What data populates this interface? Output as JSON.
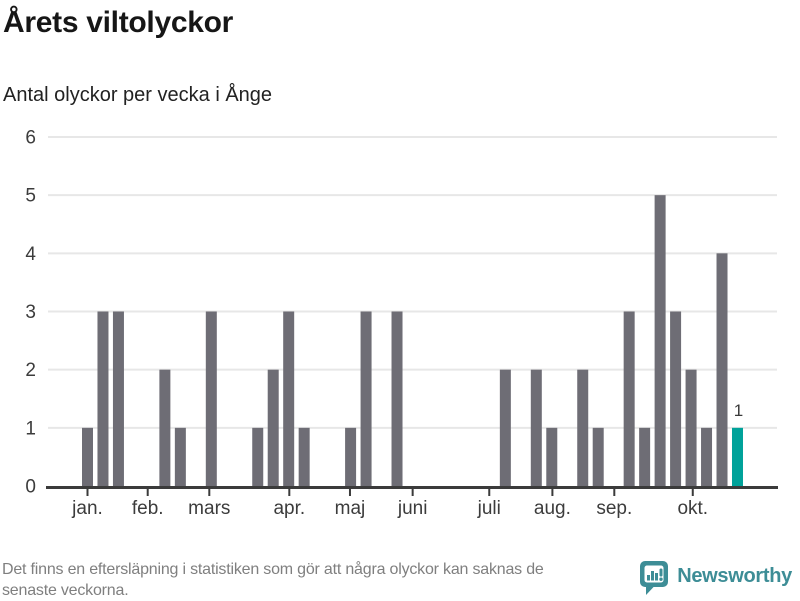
{
  "header": {
    "title": "Årets viltolyckor",
    "subtitle": "Antal olyckor per vecka i Ånge"
  },
  "chart_data": {
    "type": "bar",
    "title": "Årets viltolyckor",
    "subtitle": "Antal olyckor per vecka i Ånge",
    "x_unit": "vecka",
    "values": [
      1,
      3,
      3,
      0,
      0,
      2,
      1,
      0,
      3,
      0,
      0,
      1,
      2,
      3,
      1,
      0,
      0,
      1,
      3,
      0,
      3,
      0,
      0,
      0,
      0,
      0,
      0,
      2,
      0,
      2,
      1,
      0,
      2,
      1,
      0,
      3,
      1,
      5,
      3,
      2,
      1,
      4,
      1
    ],
    "ylim": [
      0,
      6
    ],
    "yticks": [
      0,
      1,
      2,
      3,
      4,
      5,
      6
    ],
    "grid": true,
    "legend": false,
    "month_ticks": [
      {
        "label": "jan.",
        "week": 0.0
      },
      {
        "label": "feb.",
        "week": 3.89
      },
      {
        "label": "mars",
        "week": 7.87
      },
      {
        "label": "apr.",
        "week": 13.04
      },
      {
        "label": "maj",
        "week": 16.96
      },
      {
        "label": "juni",
        "week": 21.01
      },
      {
        "label": "juli",
        "week": 25.96
      },
      {
        "label": "aug.",
        "week": 30.04
      },
      {
        "label": "sep.",
        "week": 34.04
      },
      {
        "label": "okt.",
        "week": 39.11
      }
    ],
    "highlight": {
      "week_index": 42,
      "value_label": "1"
    },
    "colors": {
      "bar": "#6e6d75",
      "highlight": "#00a29a",
      "grid": "#e7e7e7",
      "axis": "#3b3b3b",
      "tick_label": "#3c3c3c",
      "value_label": "#3a3a3a"
    }
  },
  "footer": {
    "note_line1": "Det finns en eftersläpning i statistiken som gör att några olyckor kan saknas de",
    "note_line2": "senaste veckorna.",
    "brand": {
      "name": "Newsworthy",
      "icon": "newsworthy-chart-bubble-icon",
      "color": "#3d8d96"
    }
  }
}
